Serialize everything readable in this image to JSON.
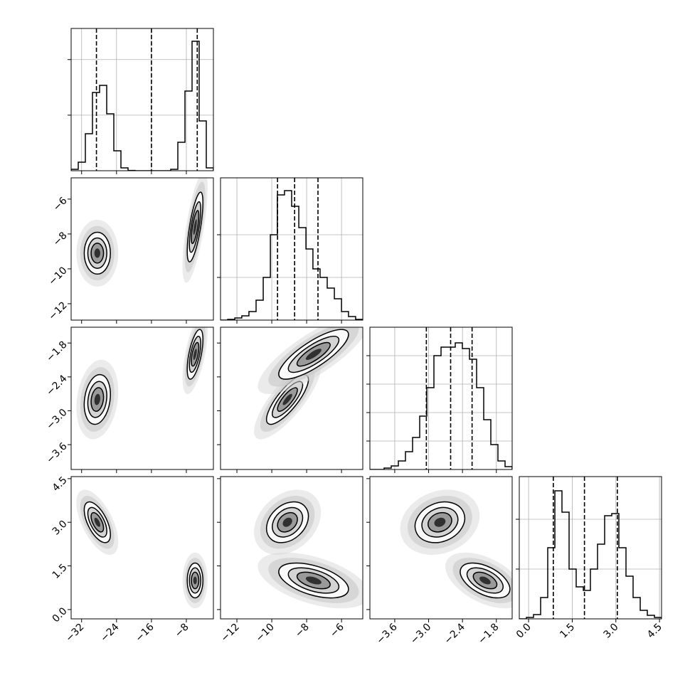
{
  "chart_data": {
    "type": "corner",
    "params": [
      {
        "xlim": [
          -34.4,
          -1.8
        ],
        "xticks": [
          {
            "value": -32,
            "label": "−32"
          },
          {
            "value": -24,
            "label": "−24"
          },
          {
            "value": -16,
            "label": "−16"
          },
          {
            "value": -8,
            "label": "−8"
          }
        ],
        "quantiles": [
          -28.6,
          -16.0,
          -5.5
        ],
        "bins": [
          -34.4,
          -32.77,
          -31.14,
          -29.51,
          -27.88,
          -26.25,
          -24.62,
          -22.99,
          -21.36,
          -19.73,
          -18.1,
          -16.47,
          -14.84,
          -13.21,
          -11.58,
          -9.95,
          -8.32,
          -6.69,
          -5.06,
          -3.43,
          -1.8
        ],
        "counts": [
          26,
          154,
          666,
          1408,
          1536,
          1024,
          358,
          51,
          5,
          0,
          0,
          0,
          0,
          0,
          26,
          512,
          1434,
          2330,
          896,
          51
        ],
        "ylim": [
          0,
          2560
        ],
        "yticks": [
          1000,
          2000
        ]
      },
      {
        "xlim": [
          -12.94,
          -4.78
        ],
        "xticks": [
          {
            "value": -12,
            "label": "−12"
          },
          {
            "value": -10,
            "label": "−10"
          },
          {
            "value": -8,
            "label": "−8"
          },
          {
            "value": -6,
            "label": "−6"
          }
        ],
        "quantiles": [
          -9.67,
          -8.69,
          -7.35
        ],
        "bins": [
          -12.94,
          -12.53,
          -12.12,
          -11.72,
          -11.31,
          -10.9,
          -10.49,
          -10.08,
          -9.68,
          -9.27,
          -8.86,
          -8.45,
          -8.04,
          -7.64,
          -7.23,
          -6.82,
          -6.41,
          -6.0,
          -5.6,
          -5.19,
          -4.78
        ],
        "counts": [
          0,
          17,
          50,
          100,
          200,
          467,
          1000,
          2000,
          2933,
          3033,
          2667,
          2167,
          1667,
          1200,
          1000,
          750,
          500,
          200,
          83,
          17
        ],
        "ylim": [
          0,
          3333
        ],
        "yticks": [
          1000,
          2000
        ]
      },
      {
        "xlim": [
          -4.04,
          -1.52
        ],
        "xticks": [
          {
            "value": -3.6,
            "label": "−3.6"
          },
          {
            "value": -3.0,
            "label": "−3.0"
          },
          {
            "value": -2.4,
            "label": "−2.4"
          },
          {
            "value": -1.8,
            "label": "−1.8"
          }
        ],
        "quantiles": [
          -3.04,
          -2.61,
          -2.23
        ],
        "bins": [
          -4.04,
          -3.914,
          -3.788,
          -3.662,
          -3.536,
          -3.41,
          -3.284,
          -3.158,
          -3.032,
          -2.906,
          -2.78,
          -2.654,
          -2.528,
          -2.402,
          -2.276,
          -2.15,
          -2.024,
          -1.898,
          -1.772,
          -1.646,
          -1.52
        ],
        "counts": [
          0,
          0,
          50,
          125,
          300,
          625,
          1125,
          1875,
          2875,
          4000,
          4300,
          4300,
          4450,
          4250,
          3875,
          2875,
          1750,
          875,
          300,
          100
        ],
        "ylim": [
          0,
          5000
        ],
        "yticks": [
          1000,
          2000,
          3000,
          4000
        ]
      },
      {
        "xlim": [
          -0.32,
          4.57
        ],
        "xticks": [
          {
            "value": 0,
            "label": "0.0"
          },
          1.5,
          {
            "value": 3,
            "label": "3.0"
          },
          4.5
        ],
        "quantiles": [
          0.85,
          1.92,
          3.05
        ],
        "bins": [
          -0.32,
          -0.076,
          0.169,
          0.414,
          0.658,
          0.903,
          1.147,
          1.392,
          1.636,
          1.881,
          2.125,
          2.37,
          2.614,
          2.859,
          3.103,
          3.348,
          3.592,
          3.837,
          4.081,
          4.326,
          4.57
        ],
        "counts": [
          0,
          29,
          86,
          429,
          1429,
          2571,
          2143,
          1000,
          643,
          571,
          1000,
          1500,
          2071,
          2114,
          1429,
          857,
          429,
          171,
          71,
          29
        ],
        "ylim": [
          0,
          2857
        ],
        "yticks": [
          1000,
          2000
        ]
      }
    ],
    "modes": [
      {
        "mean": [
          -28.4,
          -9.1,
          -2.8,
          3.0
        ],
        "sigma": [
          1.5,
          0.6,
          0.22,
          0.35
        ],
        "rho": [
          [
            1,
            0,
            0.2,
            -0.6
          ],
          [
            0,
            1,
            0.8,
            0.3
          ],
          [
            0.2,
            0.8,
            1,
            0.2
          ],
          [
            -0.6,
            0.3,
            0.2,
            1
          ]
        ]
      },
      {
        "mean": [
          -6.0,
          -7.6,
          -2.0,
          1.0
        ],
        "sigma": [
          0.9,
          1.0,
          0.22,
          0.3
        ],
        "rho": [
          [
            1,
            0.7,
            0.6,
            0
          ],
          [
            0.7,
            1,
            0.8,
            -0.5
          ],
          [
            0.6,
            0.8,
            1,
            -0.5
          ],
          [
            0,
            -0.5,
            -0.5,
            1
          ]
        ]
      }
    ]
  }
}
